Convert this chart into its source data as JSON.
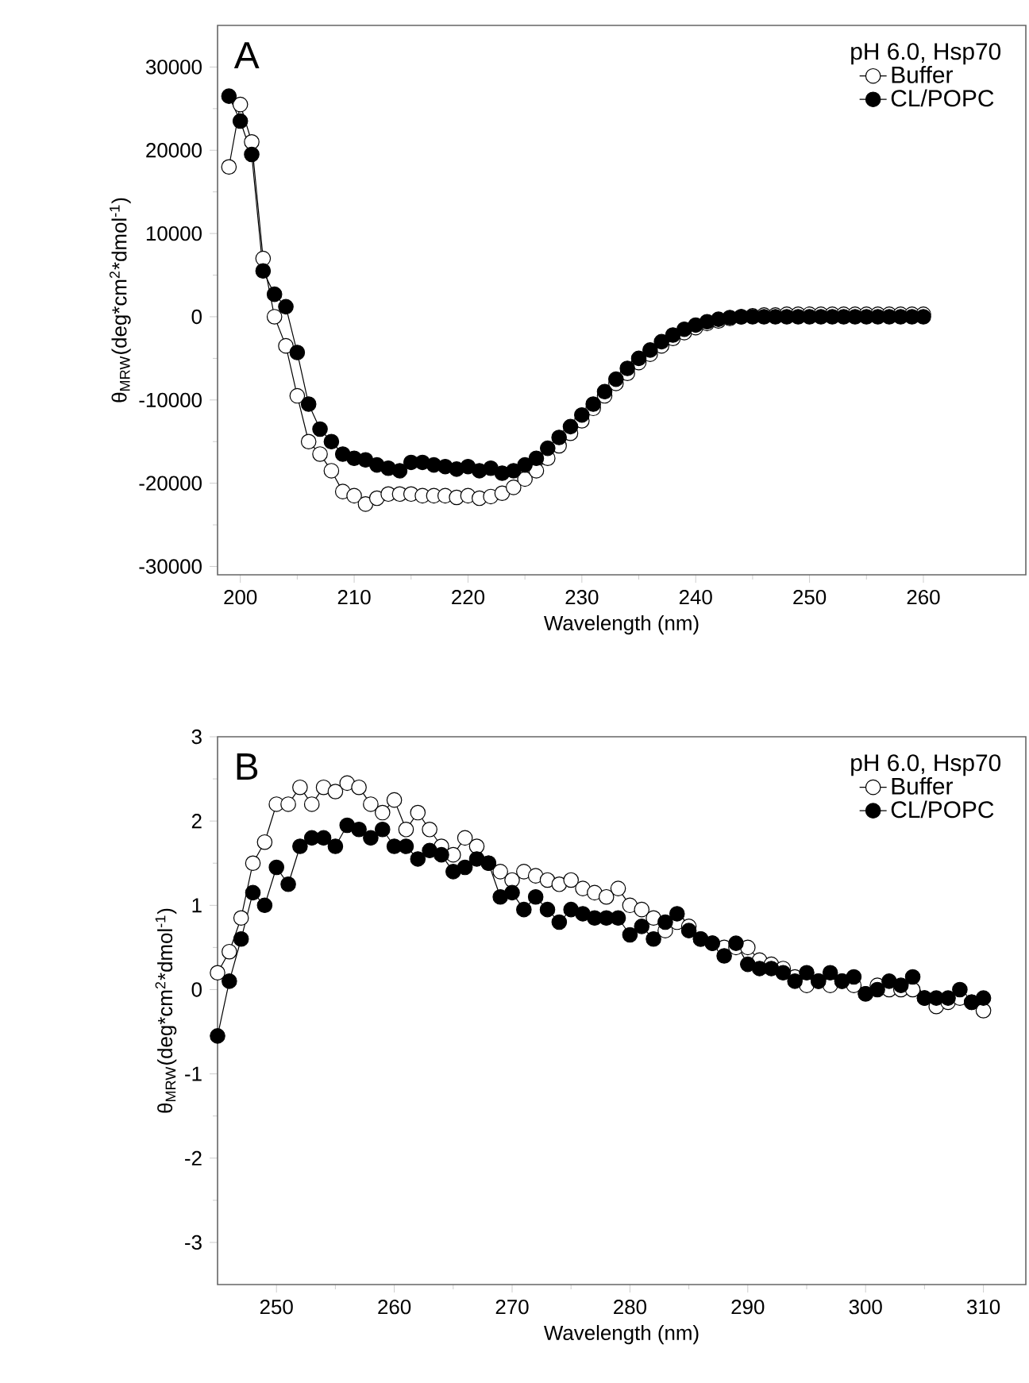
{
  "chart_data": [
    {
      "type": "line",
      "annotations": [
        "A"
      ],
      "legend_title": "pH 6.0, Hsp70",
      "xlabel": "Wavelength (nm)",
      "ylabel": "θ$_{MRW}$(deg*cm$^{2}$*dmol$^{-1}$)",
      "legend": "top right",
      "marker": "circle",
      "line_style": "solid",
      "xlim": [
        198,
        269
      ],
      "ylim": [
        -31000,
        35000
      ],
      "xticks": [
        200,
        210,
        220,
        230,
        240,
        250,
        260
      ],
      "yticks": [
        -30000,
        -20000,
        -10000,
        0,
        10000,
        20000,
        30000
      ],
      "x": [
        199,
        200,
        201,
        202,
        203,
        204,
        205,
        206,
        207,
        208,
        209,
        210,
        211,
        212,
        213,
        214,
        215,
        216,
        217,
        218,
        219,
        220,
        221,
        222,
        223,
        224,
        225,
        226,
        227,
        228,
        229,
        230,
        231,
        232,
        233,
        234,
        235,
        236,
        237,
        238,
        239,
        240,
        241,
        242,
        243,
        244,
        245,
        246,
        247,
        248,
        249,
        250,
        251,
        252,
        253,
        254,
        255,
        256,
        257,
        258,
        259,
        260
      ],
      "series": [
        {
          "name": "Buffer",
          "color": "#ffffff",
          "values": [
            18000,
            25500,
            21000,
            7000,
            0,
            -3500,
            -9500,
            -15000,
            -16500,
            -18500,
            -21000,
            -21500,
            -22500,
            -21800,
            -21300,
            -21300,
            -21300,
            -21500,
            -21500,
            -21500,
            -21700,
            -21500,
            -21800,
            -21600,
            -21200,
            -20500,
            -19500,
            -18500,
            -17000,
            -15500,
            -14000,
            -12500,
            -11000,
            -9500,
            -8000,
            -6800,
            -5500,
            -4500,
            -3500,
            -2600,
            -1900,
            -1300,
            -800,
            -500,
            -200,
            0,
            100,
            200,
            200,
            300,
            300,
            300,
            300,
            300,
            300,
            300,
            300,
            300,
            300,
            300,
            300,
            300
          ]
        },
        {
          "name": "CL/POPC",
          "color": "#000000",
          "values": [
            26500,
            23500,
            19500,
            5500,
            2700,
            1200,
            -4300,
            -10500,
            -13500,
            -15000,
            -16500,
            -17000,
            -17200,
            -17800,
            -18200,
            -18500,
            -17500,
            -17500,
            -17800,
            -18000,
            -18300,
            -18000,
            -18500,
            -18200,
            -18800,
            -18500,
            -17800,
            -17000,
            -15800,
            -14500,
            -13200,
            -11800,
            -10500,
            -9000,
            -7500,
            -6200,
            -5000,
            -4000,
            -3000,
            -2200,
            -1500,
            -1000,
            -600,
            -300,
            -100,
            0,
            0,
            0,
            0,
            0,
            0,
            0,
            0,
            0,
            0,
            0,
            0,
            0,
            0,
            0,
            0,
            0
          ]
        }
      ]
    },
    {
      "type": "line",
      "annotations": [
        "B"
      ],
      "legend_title": "pH 6.0, Hsp70",
      "xlabel": "Wavelength (nm)",
      "ylabel": "θ$_{MRW}$(deg*cm$^{2}$*dmol$^{-1}$)",
      "legend": "top right",
      "marker": "circle",
      "line_style": "solid",
      "xlim": [
        245,
        313.6
      ],
      "ylim": [
        -3.5,
        3
      ],
      "xticks": [
        250,
        260,
        270,
        280,
        290,
        300,
        310
      ],
      "yticks": [
        -3,
        -2,
        -1,
        0,
        1,
        2,
        3
      ],
      "x": [
        245,
        246,
        247,
        248,
        249,
        250,
        251,
        252,
        253,
        254,
        255,
        256,
        257,
        258,
        259,
        260,
        261,
        262,
        263,
        264,
        265,
        266,
        267,
        268,
        269,
        270,
        271,
        272,
        273,
        274,
        275,
        276,
        277,
        278,
        279,
        280,
        281,
        282,
        283,
        284,
        285,
        286,
        287,
        288,
        289,
        290,
        291,
        292,
        293,
        294,
        295,
        296,
        297,
        298,
        299,
        300,
        301,
        302,
        303,
        304,
        305,
        306,
        307,
        308,
        309,
        310
      ],
      "series": [
        {
          "name": "Buffer",
          "color": "#ffffff",
          "values": [
            0.2,
            0.45,
            0.85,
            1.5,
            1.75,
            2.2,
            2.2,
            2.4,
            2.2,
            2.4,
            2.35,
            2.45,
            2.4,
            2.2,
            2.1,
            2.25,
            1.9,
            2.1,
            1.9,
            1.7,
            1.6,
            1.8,
            1.7,
            1.5,
            1.4,
            1.3,
            1.4,
            1.35,
            1.3,
            1.25,
            1.3,
            1.2,
            1.15,
            1.1,
            1.2,
            1.0,
            0.95,
            0.85,
            0.7,
            0.8,
            0.75,
            0.6,
            0.55,
            0.5,
            0.5,
            0.5,
            0.35,
            0.3,
            0.25,
            0.15,
            0.05,
            0.1,
            0.05,
            0.1,
            0.05,
            -0.05,
            0.05,
            0.0,
            0.0,
            0.0,
            -0.1,
            -0.2,
            -0.15,
            -0.1,
            -0.15,
            -0.25
          ]
        },
        {
          "name": "CL/POPC",
          "color": "#000000",
          "values": [
            -0.55,
            0.1,
            0.6,
            1.15,
            1.0,
            1.45,
            1.25,
            1.7,
            1.8,
            1.8,
            1.7,
            1.95,
            1.9,
            1.8,
            1.9,
            1.7,
            1.7,
            1.55,
            1.65,
            1.6,
            1.4,
            1.45,
            1.55,
            1.5,
            1.1,
            1.15,
            0.95,
            1.1,
            0.95,
            0.8,
            0.95,
            0.9,
            0.85,
            0.85,
            0.85,
            0.65,
            0.75,
            0.6,
            0.8,
            0.9,
            0.7,
            0.6,
            0.55,
            0.4,
            0.55,
            0.3,
            0.25,
            0.25,
            0.2,
            0.1,
            0.2,
            0.1,
            0.2,
            0.1,
            0.15,
            -0.05,
            0.0,
            0.1,
            0.05,
            0.15,
            -0.1,
            -0.1,
            -0.1,
            0.0,
            -0.15,
            -0.1
          ]
        }
      ]
    }
  ]
}
